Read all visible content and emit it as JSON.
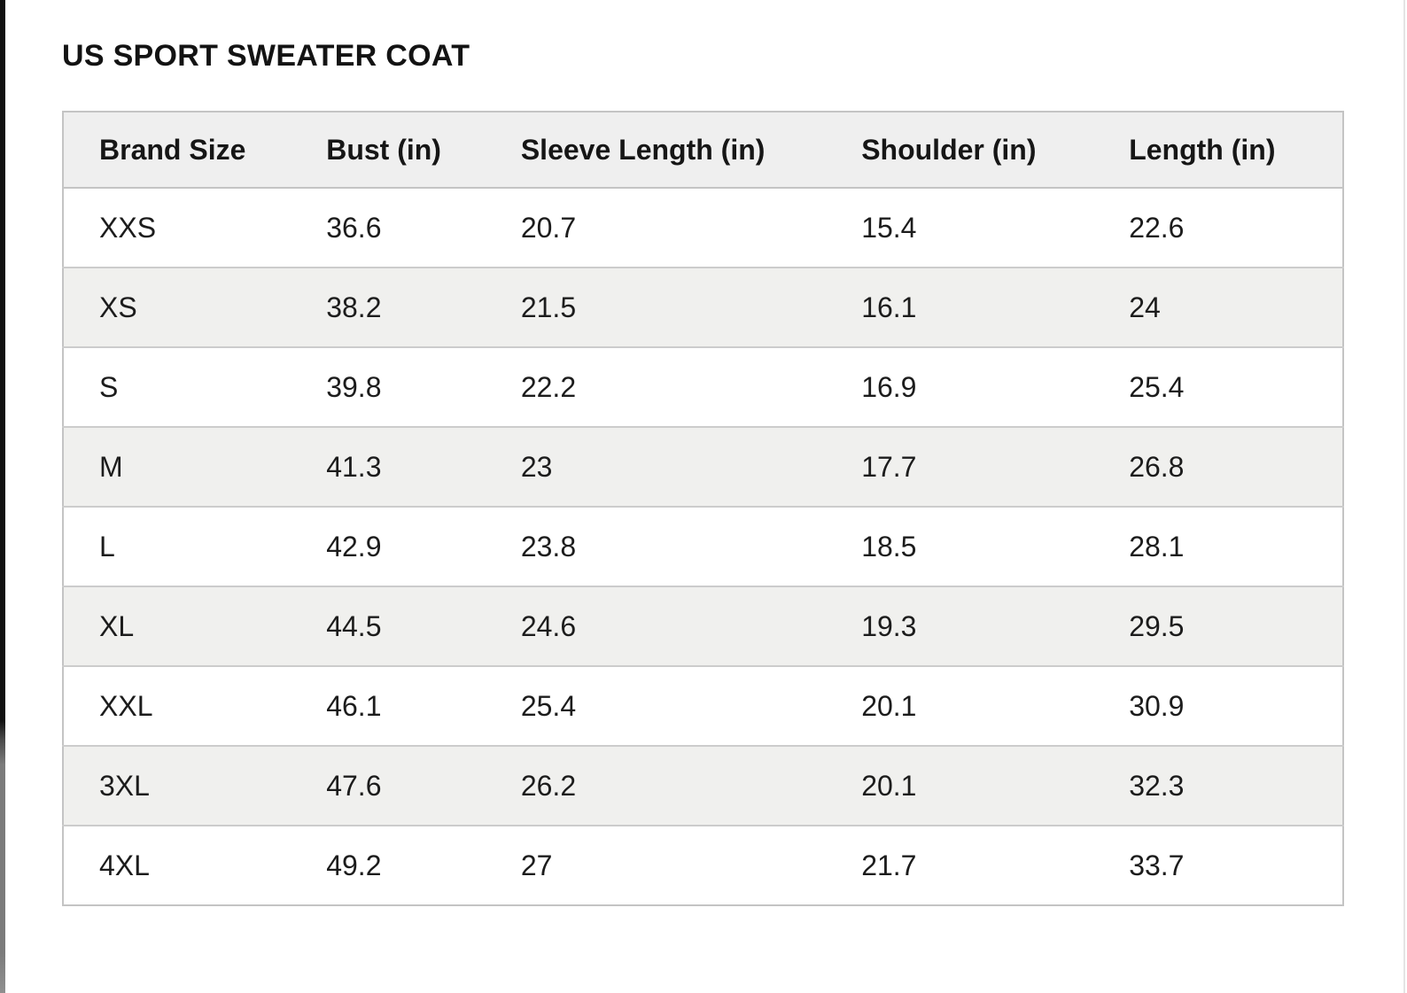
{
  "title": "US SPORT SWEATER COAT",
  "chart_data": {
    "type": "table",
    "title": "US SPORT SWEATER COAT",
    "columns": [
      "Brand Size",
      "Bust (in)",
      "Sleeve Length (in)",
      "Shoulder (in)",
      "Length (in)"
    ],
    "rows": [
      [
        "XXS",
        "36.6",
        "20.7",
        "15.4",
        "22.6"
      ],
      [
        "XS",
        "38.2",
        "21.5",
        "16.1",
        "24"
      ],
      [
        "S",
        "39.8",
        "22.2",
        "16.9",
        "25.4"
      ],
      [
        "M",
        "41.3",
        "23",
        "17.7",
        "26.8"
      ],
      [
        "L",
        "42.9",
        "23.8",
        "18.5",
        "28.1"
      ],
      [
        "XL",
        "44.5",
        "24.6",
        "19.3",
        "29.5"
      ],
      [
        "XXL",
        "46.1",
        "25.4",
        "20.1",
        "30.9"
      ],
      [
        "3XL",
        "47.6",
        "26.2",
        "20.1",
        "32.3"
      ],
      [
        "4XL",
        "49.2",
        "27",
        "21.7",
        "33.7"
      ]
    ],
    "layout": {
      "striped_rows": true,
      "stripe_start": "white",
      "column_alignment": "left"
    }
  },
  "colors": {
    "header_bg": "#efefef",
    "stripe_bg": "#f0f0ee",
    "table_border": "#c4c4c4",
    "row_divider": "#cccccc",
    "text": "#1a1a1a",
    "title_text": "#131313",
    "page_bg": "#ffffff",
    "left_strip_top": "#101010",
    "left_strip_bottom": "#7b7b7b"
  }
}
